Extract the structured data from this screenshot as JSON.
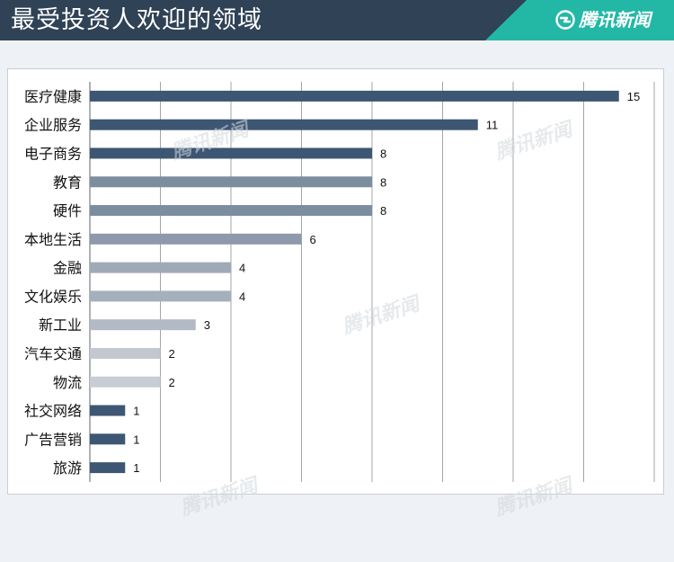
{
  "header": {
    "title": "最受投资人欢迎的领域",
    "brand": "腾讯新闻"
  },
  "colors": {
    "header_bg": "#2f4256",
    "brand_bg": "#23b8a6",
    "bar_palette": [
      "#3d5673",
      "#3d5673",
      "#3d5673",
      "#7d8da0",
      "#7d8da0",
      "#8e9aab",
      "#a0a9b7",
      "#a6afbc",
      "#b3bac5",
      "#c3c8d0",
      "#c8ccd4",
      "#3d5673",
      "#3d5673",
      "#3d5673"
    ]
  },
  "chart_data": {
    "type": "bar",
    "orientation": "horizontal",
    "title": "最受投资人欢迎的领域",
    "categories": [
      "医疗健康",
      "企业服务",
      "电子商务",
      "教育",
      "硬件",
      "本地生活",
      "金融",
      "文化娱乐",
      "新工业",
      "汽车交通",
      "物流",
      "社交网络",
      "广告营销",
      "旅游"
    ],
    "values": [
      15,
      11,
      8,
      8,
      8,
      6,
      4,
      4,
      3,
      2,
      2,
      1,
      1,
      1
    ],
    "xlim": [
      0,
      16
    ],
    "grid": true,
    "data_labels": true
  }
}
